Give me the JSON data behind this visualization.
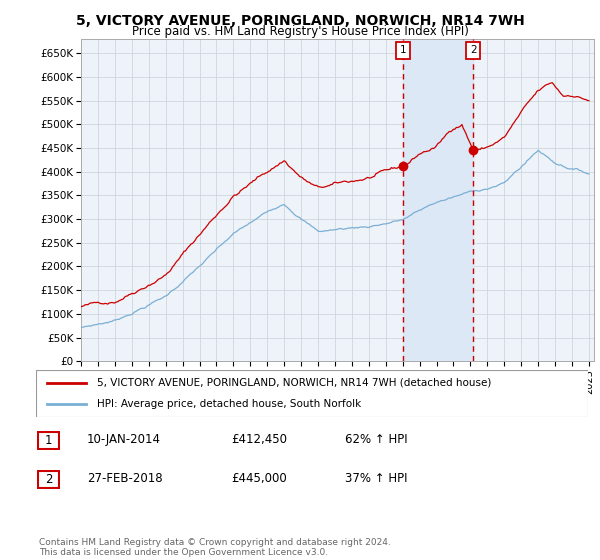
{
  "title": "5, VICTORY AVENUE, PORINGLAND, NORWICH, NR14 7WH",
  "subtitle": "Price paid vs. HM Land Registry's House Price Index (HPI)",
  "xlim_start": 1995.0,
  "xlim_end": 2025.3,
  "ylim_bottom": 0,
  "ylim_top": 680000,
  "yticks": [
    0,
    50000,
    100000,
    150000,
    200000,
    250000,
    300000,
    350000,
    400000,
    450000,
    500000,
    550000,
    600000,
    650000
  ],
  "ytick_labels": [
    "£0",
    "£50K",
    "£100K",
    "£150K",
    "£200K",
    "£250K",
    "£300K",
    "£350K",
    "£400K",
    "£450K",
    "£500K",
    "£550K",
    "£600K",
    "£650K"
  ],
  "xticks": [
    1995,
    1996,
    1997,
    1998,
    1999,
    2000,
    2001,
    2002,
    2003,
    2004,
    2005,
    2006,
    2007,
    2008,
    2009,
    2010,
    2011,
    2012,
    2013,
    2014,
    2015,
    2016,
    2017,
    2018,
    2019,
    2020,
    2021,
    2022,
    2023,
    2024,
    2025
  ],
  "red_line_color": "#cc0000",
  "blue_line_color": "#7bafd4",
  "shade_color": "#dce8f5",
  "marker1_x": 2014.04,
  "marker1_y": 412450,
  "marker2_x": 2018.16,
  "marker2_y": 445000,
  "legend_red_label": "5, VICTORY AVENUE, PORINGLAND, NORWICH, NR14 7WH (detached house)",
  "legend_blue_label": "HPI: Average price, detached house, South Norfolk",
  "annot1_label": "1",
  "annot1_date": "10-JAN-2014",
  "annot1_price": "£412,450",
  "annot1_hpi": "62% ↑ HPI",
  "annot2_label": "2",
  "annot2_date": "27-FEB-2018",
  "annot2_price": "£445,000",
  "annot2_hpi": "37% ↑ HPI",
  "footer": "Contains HM Land Registry data © Crown copyright and database right 2024.\nThis data is licensed under the Open Government Licence v3.0.",
  "background_color": "#ffffff",
  "plot_bg_color": "#eef3f9",
  "grid_color": "#c8d0d8"
}
